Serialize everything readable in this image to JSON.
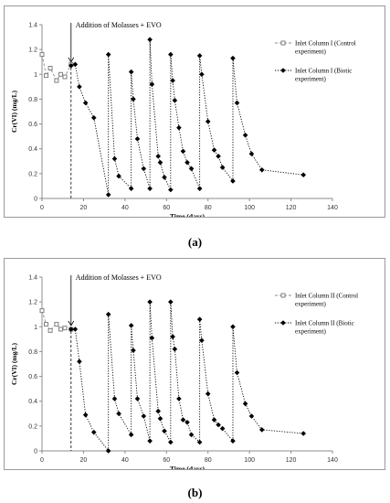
{
  "figure": {
    "caption_a": "(a)",
    "caption_b": "(b)"
  },
  "chart_data": [
    {
      "type": "line",
      "panel": "a",
      "xlabel": "Time (days)",
      "ylabel": "Cr(VI) (mg/L)",
      "xlim": [
        0,
        140
      ],
      "ylim": [
        0,
        1.4
      ],
      "xticks": [
        0,
        20,
        40,
        60,
        80,
        100,
        120,
        140
      ],
      "yticks": [
        0,
        0.2,
        0.4,
        0.6,
        0.8,
        1,
        1.2,
        1.4
      ],
      "ytick_labels": [
        "0",
        "0.2",
        "0.4",
        "0.6",
        "0.8",
        "1",
        "1.2",
        "1.4"
      ],
      "grid": false,
      "legend_position": "right",
      "annotation": {
        "text": "Addition of Molasses + EVO",
        "x": 14
      },
      "series": [
        {
          "name": "Inlet Column I (Control experiment)",
          "marker": "square",
          "color": "#7f7f7f",
          "x": [
            0,
            2,
            4,
            7,
            9,
            11,
            14
          ],
          "y": [
            1.16,
            0.99,
            1.05,
            0.95,
            1.0,
            0.98,
            1.08
          ]
        },
        {
          "name": "Inlet Column I (Biotic experiment)",
          "marker": "diamond",
          "color": "#000000",
          "x": [
            14,
            16,
            18,
            21,
            25,
            32,
            32,
            35,
            37,
            43,
            43,
            44,
            46,
            49,
            52,
            52,
            53,
            56,
            57,
            59,
            62,
            62,
            63,
            64,
            66,
            68,
            70,
            72,
            76,
            76,
            77,
            80,
            83,
            85,
            87,
            92,
            92,
            94,
            98,
            101,
            106,
            126
          ],
          "y": [
            1.07,
            1.08,
            0.9,
            0.77,
            0.65,
            0.03,
            1.16,
            0.32,
            0.18,
            0.08,
            1.02,
            0.8,
            0.48,
            0.24,
            0.08,
            1.28,
            0.92,
            0.34,
            0.29,
            0.17,
            0.07,
            1.16,
            0.95,
            0.79,
            0.57,
            0.38,
            0.29,
            0.24,
            0.08,
            1.15,
            1.0,
            0.62,
            0.39,
            0.34,
            0.25,
            0.14,
            1.13,
            0.77,
            0.51,
            0.36,
            0.23,
            0.19
          ]
        }
      ]
    },
    {
      "type": "line",
      "panel": "b",
      "xlabel": "Time (days)",
      "ylabel": "Cr(VI) (mg/L)",
      "xlim": [
        0,
        140
      ],
      "ylim": [
        0,
        1.4
      ],
      "xticks": [
        0,
        20,
        40,
        60,
        80,
        100,
        120,
        140
      ],
      "yticks": [
        0,
        0.2,
        0.4,
        0.6,
        0.8,
        1,
        1.2,
        1.4
      ],
      "ytick_labels": [
        "0",
        "0.2",
        "0.4",
        "0.6",
        "0.8",
        "1",
        "1.2",
        "1.4"
      ],
      "grid": false,
      "legend_position": "right",
      "annotation": {
        "text": "Addition of Molasses  + EVO",
        "x": 14
      },
      "series": [
        {
          "name": "Inlet Column II (Control experiment)",
          "marker": "square",
          "color": "#7f7f7f",
          "x": [
            0,
            2,
            4,
            7,
            9,
            11,
            14
          ],
          "y": [
            1.13,
            1.02,
            0.97,
            1.02,
            0.98,
            0.99,
            0.98
          ]
        },
        {
          "name": "Inlet Column II (Biotic experiment)",
          "marker": "diamond",
          "color": "#000000",
          "x": [
            14,
            16,
            18,
            21,
            25,
            32,
            32,
            35,
            37,
            43,
            43,
            44,
            46,
            49,
            52,
            52,
            53,
            56,
            57,
            59,
            62,
            62,
            63,
            64,
            66,
            68,
            70,
            72,
            76,
            76,
            77,
            80,
            83,
            85,
            87,
            92,
            92,
            94,
            98,
            101,
            106,
            126
          ],
          "y": [
            0.98,
            0.98,
            0.72,
            0.29,
            0.15,
            0.0,
            1.1,
            0.42,
            0.3,
            0.13,
            1.01,
            0.81,
            0.42,
            0.28,
            0.08,
            1.2,
            0.91,
            0.32,
            0.26,
            0.16,
            0.07,
            1.2,
            0.92,
            0.82,
            0.42,
            0.25,
            0.23,
            0.13,
            0.07,
            1.06,
            0.89,
            0.46,
            0.25,
            0.21,
            0.18,
            0.08,
            1.0,
            0.63,
            0.38,
            0.28,
            0.17,
            0.14
          ]
        }
      ]
    }
  ]
}
